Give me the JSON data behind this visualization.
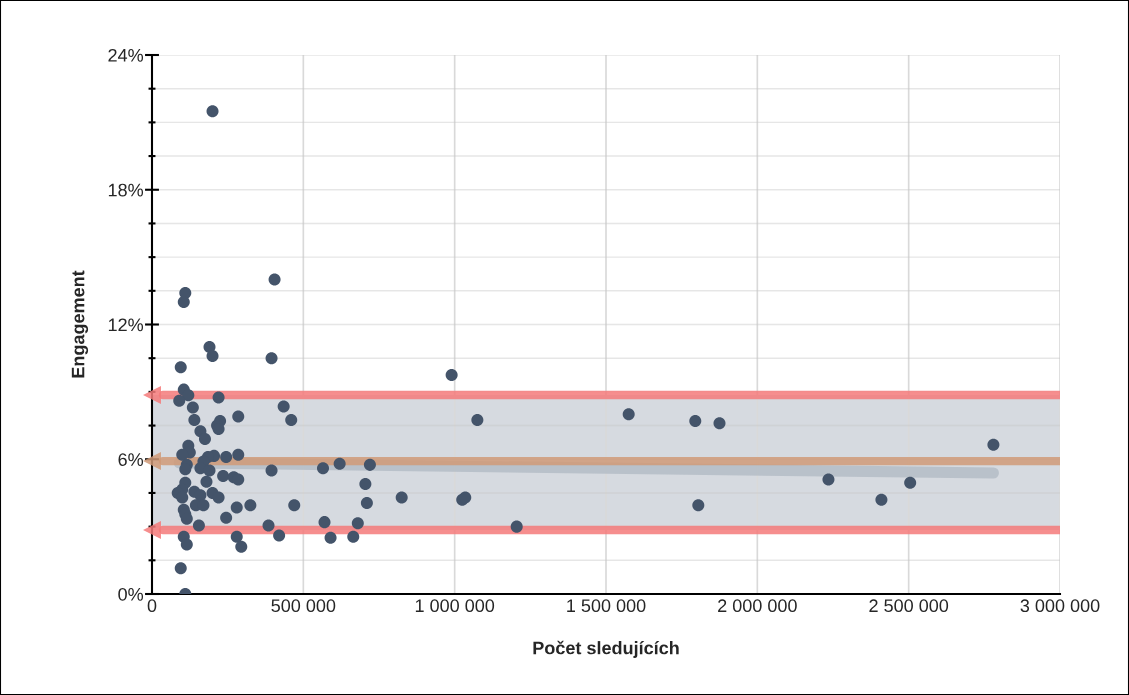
{
  "chart_data": {
    "type": "scatter",
    "xlabel": "Počet sledujících",
    "ylabel": "Engagement",
    "series": [
      {
        "color": "#44546a",
        "x": [
          200000,
          405000,
          110000,
          105000,
          190000,
          200000,
          95000,
          395000,
          990000,
          105000,
          120000,
          90000,
          220000,
          135000,
          435000,
          140000,
          460000,
          225000,
          215000,
          220000,
          285000,
          160000,
          175000,
          120000,
          125000,
          100000,
          205000,
          185000,
          170000,
          245000,
          285000,
          115000,
          110000,
          160000,
          190000,
          180000,
          235000,
          270000,
          285000,
          395000,
          565000,
          620000,
          720000,
          110000,
          100000,
          85000,
          100000,
          140000,
          160000,
          200000,
          220000,
          145000,
          170000,
          105000,
          110000,
          115000,
          280000,
          325000,
          470000,
          245000,
          155000,
          385000,
          570000,
          105000,
          115000,
          280000,
          295000,
          420000,
          590000,
          95000,
          110000,
          705000,
          710000,
          825000,
          1025000,
          1035000,
          680000,
          665000,
          1205000,
          1075000,
          1575000,
          1795000,
          1875000,
          2780000,
          1805000,
          2235000,
          2410000,
          2505000
        ],
        "values": [
          21.5,
          14.0,
          13.4,
          13.0,
          11.0,
          10.6,
          10.1,
          10.5,
          9.75,
          9.1,
          8.85,
          8.6,
          8.75,
          8.3,
          8.35,
          7.75,
          7.75,
          7.7,
          7.5,
          7.35,
          7.9,
          7.25,
          6.9,
          6.6,
          6.3,
          6.2,
          6.15,
          6.1,
          5.9,
          6.1,
          6.2,
          5.75,
          5.55,
          5.6,
          5.5,
          5.0,
          5.25,
          5.2,
          5.1,
          5.5,
          5.6,
          5.8,
          5.75,
          4.95,
          4.65,
          4.5,
          4.3,
          4.55,
          4.4,
          4.5,
          4.3,
          3.95,
          3.95,
          3.75,
          3.55,
          3.35,
          3.85,
          3.95,
          3.95,
          3.4,
          3.05,
          3.05,
          3.2,
          2.55,
          2.2,
          2.55,
          2.1,
          2.6,
          2.5,
          1.15,
          0,
          4.9,
          4.05,
          4.3,
          4.2,
          4.3,
          3.15,
          2.55,
          3.0,
          7.75,
          8.0,
          7.7,
          7.6,
          6.65,
          3.95,
          5.1,
          4.2,
          4.95
        ]
      },
      {
        "type": "line",
        "marker": "none",
        "color": "#b4bcc6",
        "x": [
          90000,
          2780000
        ],
        "values": [
          5.84,
          5.39
        ]
      }
    ],
    "bands": [
      {
        "axis": "y",
        "from": 2.85,
        "to": 8.86,
        "color": "#d6dae0"
      }
    ],
    "ref_lines": [
      {
        "axis": "y",
        "value": 8.86,
        "color": "#f47a7a"
      },
      {
        "axis": "y",
        "value": 5.92,
        "color": "#d09a78"
      },
      {
        "axis": "y",
        "value": 2.85,
        "color": "#f47a7a"
      }
    ],
    "xlim": [
      0,
      3000000
    ],
    "xticks": [
      0,
      {
        "value": 500000,
        "label": "500 000"
      },
      {
        "value": 1000000,
        "label": "1 000 000"
      },
      {
        "value": 1500000,
        "label": "1 500 000"
      },
      {
        "value": 2000000,
        "label": "2 000 000"
      },
      {
        "value": 2500000,
        "label": "2 500 000"
      },
      {
        "value": 3000000,
        "label": "3 000 000"
      }
    ],
    "ylim": [
      0,
      24
    ],
    "yticks": [
      {
        "value": 0,
        "label": "0%"
      },
      {
        "value": 1.5,
        "label": null
      },
      {
        "value": 3,
        "label": null
      },
      {
        "value": 4.5,
        "label": null
      },
      {
        "value": 6,
        "label": "6%"
      },
      {
        "value": 7.5,
        "label": null
      },
      {
        "value": 9,
        "label": null
      },
      {
        "value": 10.5,
        "label": null
      },
      {
        "value": 12,
        "label": "12%"
      },
      {
        "value": 13.5,
        "label": null
      },
      {
        "value": 15,
        "label": null
      },
      {
        "value": 16.5,
        "label": null
      },
      {
        "value": 18,
        "label": "18%"
      },
      {
        "value": 19.5,
        "label": null
      },
      {
        "value": 21,
        "label": null
      },
      {
        "value": 22.5,
        "label": null
      },
      {
        "value": 24,
        "label": "24%"
      }
    ],
    "grid": true,
    "marker": "circle",
    "legend": false
  }
}
